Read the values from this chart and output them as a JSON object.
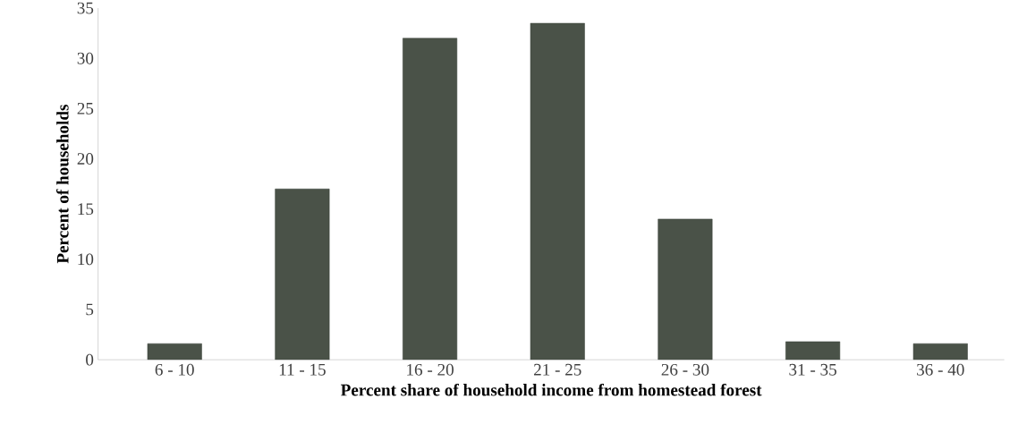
{
  "chart_data": {
    "type": "bar",
    "xlabel": "Percent share of household income from homestead forest",
    "ylabel": "Percent of households",
    "categories": [
      "6 - 10",
      "11 - 15",
      "16 - 20",
      "21 - 25",
      "26 - 30",
      "31 - 35",
      "36 - 40"
    ],
    "values": [
      1.6,
      17,
      32,
      33.5,
      14,
      1.8,
      1.6
    ],
    "color": "#4a5248",
    "ylim": [
      0,
      35
    ],
    "yticks": [
      0,
      5,
      10,
      15,
      20,
      25,
      30,
      35
    ],
    "grid": false
  }
}
